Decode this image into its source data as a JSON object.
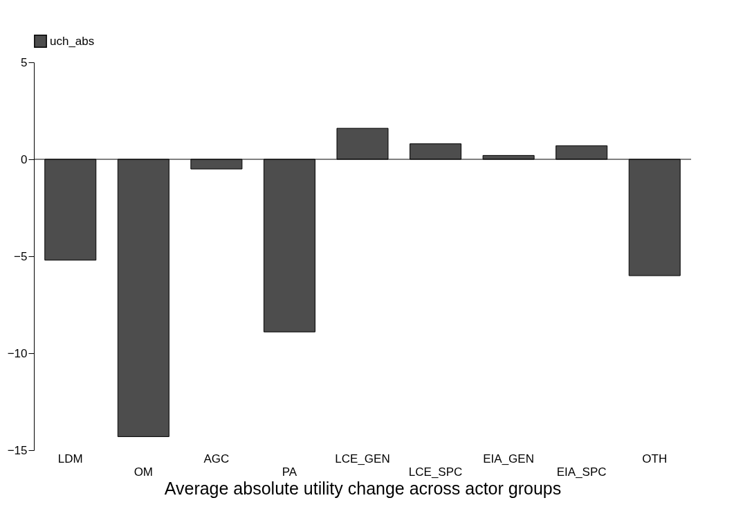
{
  "chart_data": {
    "type": "bar",
    "xlabel": "Average absolute utility change across actor groups",
    "categories": [
      "LDM",
      "OM",
      "AGC",
      "PA",
      "LCE_GEN",
      "LCE_SPC",
      "EIA_GEN",
      "EIA_SPC",
      "OTH"
    ],
    "series": [
      {
        "name": "uch_abs",
        "color": "#4d4d4d",
        "values": [
          -5.2,
          -14.3,
          -0.5,
          -8.9,
          1.6,
          0.8,
          0.2,
          0.7,
          -6.0
        ]
      }
    ],
    "ref_lines": [
      {
        "axis": "y",
        "value": 0,
        "color": "#000000"
      }
    ],
    "ylim": [
      -15,
      5
    ],
    "yticks": [
      -15,
      -10,
      -5,
      0,
      5
    ],
    "grid": false,
    "legend": "top left"
  }
}
